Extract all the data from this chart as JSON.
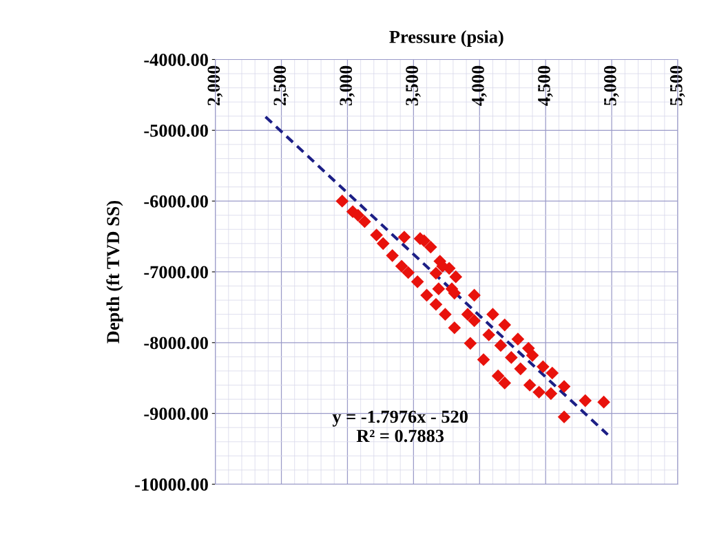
{
  "chart_data": {
    "type": "scatter",
    "xlabel": "Pressure (psia)",
    "ylabel": "Depth (ft TVD SS)",
    "xlim": [
      2000,
      5500
    ],
    "ylim": [
      -10000,
      -4000
    ],
    "xticks": [
      {
        "value": 2000,
        "label": "2,000"
      },
      {
        "value": 2500,
        "label": "2,500"
      },
      {
        "value": 3000,
        "label": "3,000"
      },
      {
        "value": 3500,
        "label": "3,500"
      },
      {
        "value": 4000,
        "label": "4,000"
      },
      {
        "value": 4500,
        "label": "4,500"
      },
      {
        "value": 5000,
        "label": "5,000"
      },
      {
        "value": 5500,
        "label": "5,500"
      }
    ],
    "yticks": [
      {
        "value": -10000,
        "label": "-10000.00"
      },
      {
        "value": -9000,
        "label": "-9000.00"
      },
      {
        "value": -8000,
        "label": "-8000.00"
      },
      {
        "value": -7000,
        "label": "-7000.00"
      },
      {
        "value": -6000,
        "label": "-6000.00"
      },
      {
        "value": -5000,
        "label": "-5000.00"
      },
      {
        "value": -4000,
        "label": "-4000.00"
      }
    ],
    "grid": true,
    "legend": false,
    "annotations": [
      "y = -1.7976x - 520",
      "R² = 0.7883"
    ],
    "series": [
      {
        "color": "#e8120c",
        "marker": "diamond",
        "x": [
          2960,
          3040,
          3080,
          3130,
          3220,
          3270,
          3340,
          3430,
          3550,
          3580,
          3630,
          3410,
          3460,
          3530,
          3600,
          3670,
          3740,
          3700,
          3770,
          3670,
          3790,
          3720,
          3820,
          3690,
          3810,
          3960,
          3810,
          3930,
          4030,
          4140,
          4190,
          3910,
          3960,
          4100,
          4190,
          4290,
          4370,
          4070,
          4160,
          4240,
          4310,
          4400,
          4480,
          4550,
          4380,
          4450,
          4540,
          4640,
          4800,
          4640,
          4940
        ],
        "values": [
          -6000,
          -6150,
          -6200,
          -6290,
          -6480,
          -6600,
          -6770,
          -6510,
          -6530,
          -6560,
          -6650,
          -6920,
          -7010,
          -7140,
          -7330,
          -7460,
          -7600,
          -6850,
          -6950,
          -7020,
          -7240,
          -6920,
          -7070,
          -7240,
          -7300,
          -7330,
          -7790,
          -8010,
          -8240,
          -8470,
          -8570,
          -7600,
          -7690,
          -7600,
          -7750,
          -7950,
          -8080,
          -7890,
          -8040,
          -8210,
          -8370,
          -8180,
          -8340,
          -8430,
          -8600,
          -8700,
          -8720,
          -8620,
          -8820,
          -9050,
          -8840
        ]
      },
      {
        "type": "line",
        "color": "#1c1f86",
        "line_style": "dashed",
        "x": [
          2380,
          4970
        ],
        "values": [
          -4810,
          -9300
        ]
      }
    ]
  }
}
